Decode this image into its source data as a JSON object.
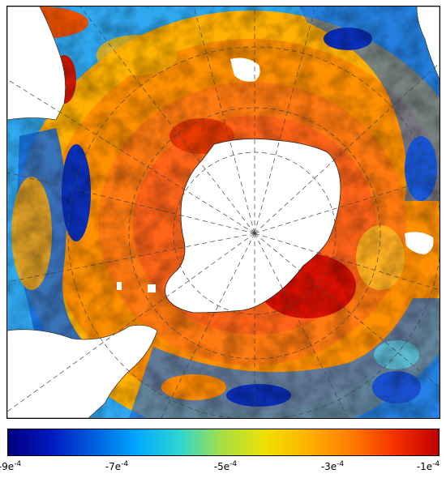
{
  "map": {
    "projection": "south-polar-stereographic",
    "continent": "Antarctica",
    "graticule": true
  },
  "colorbar": {
    "colors": [
      "#00007f",
      "#0018c0",
      "#005fe0",
      "#00a8ff",
      "#2fd6d0",
      "#a8e040",
      "#f0e000",
      "#ffb000",
      "#ff7a00",
      "#f53000",
      "#c00000"
    ],
    "ticks": [
      {
        "base": "-9e",
        "exp": "-4"
      },
      {
        "base": "-7e",
        "exp": "-4"
      },
      {
        "base": "-5e",
        "exp": "-4"
      },
      {
        "base": "-3e",
        "exp": "-4"
      },
      {
        "base": "-1e",
        "exp": "-4"
      }
    ]
  }
}
